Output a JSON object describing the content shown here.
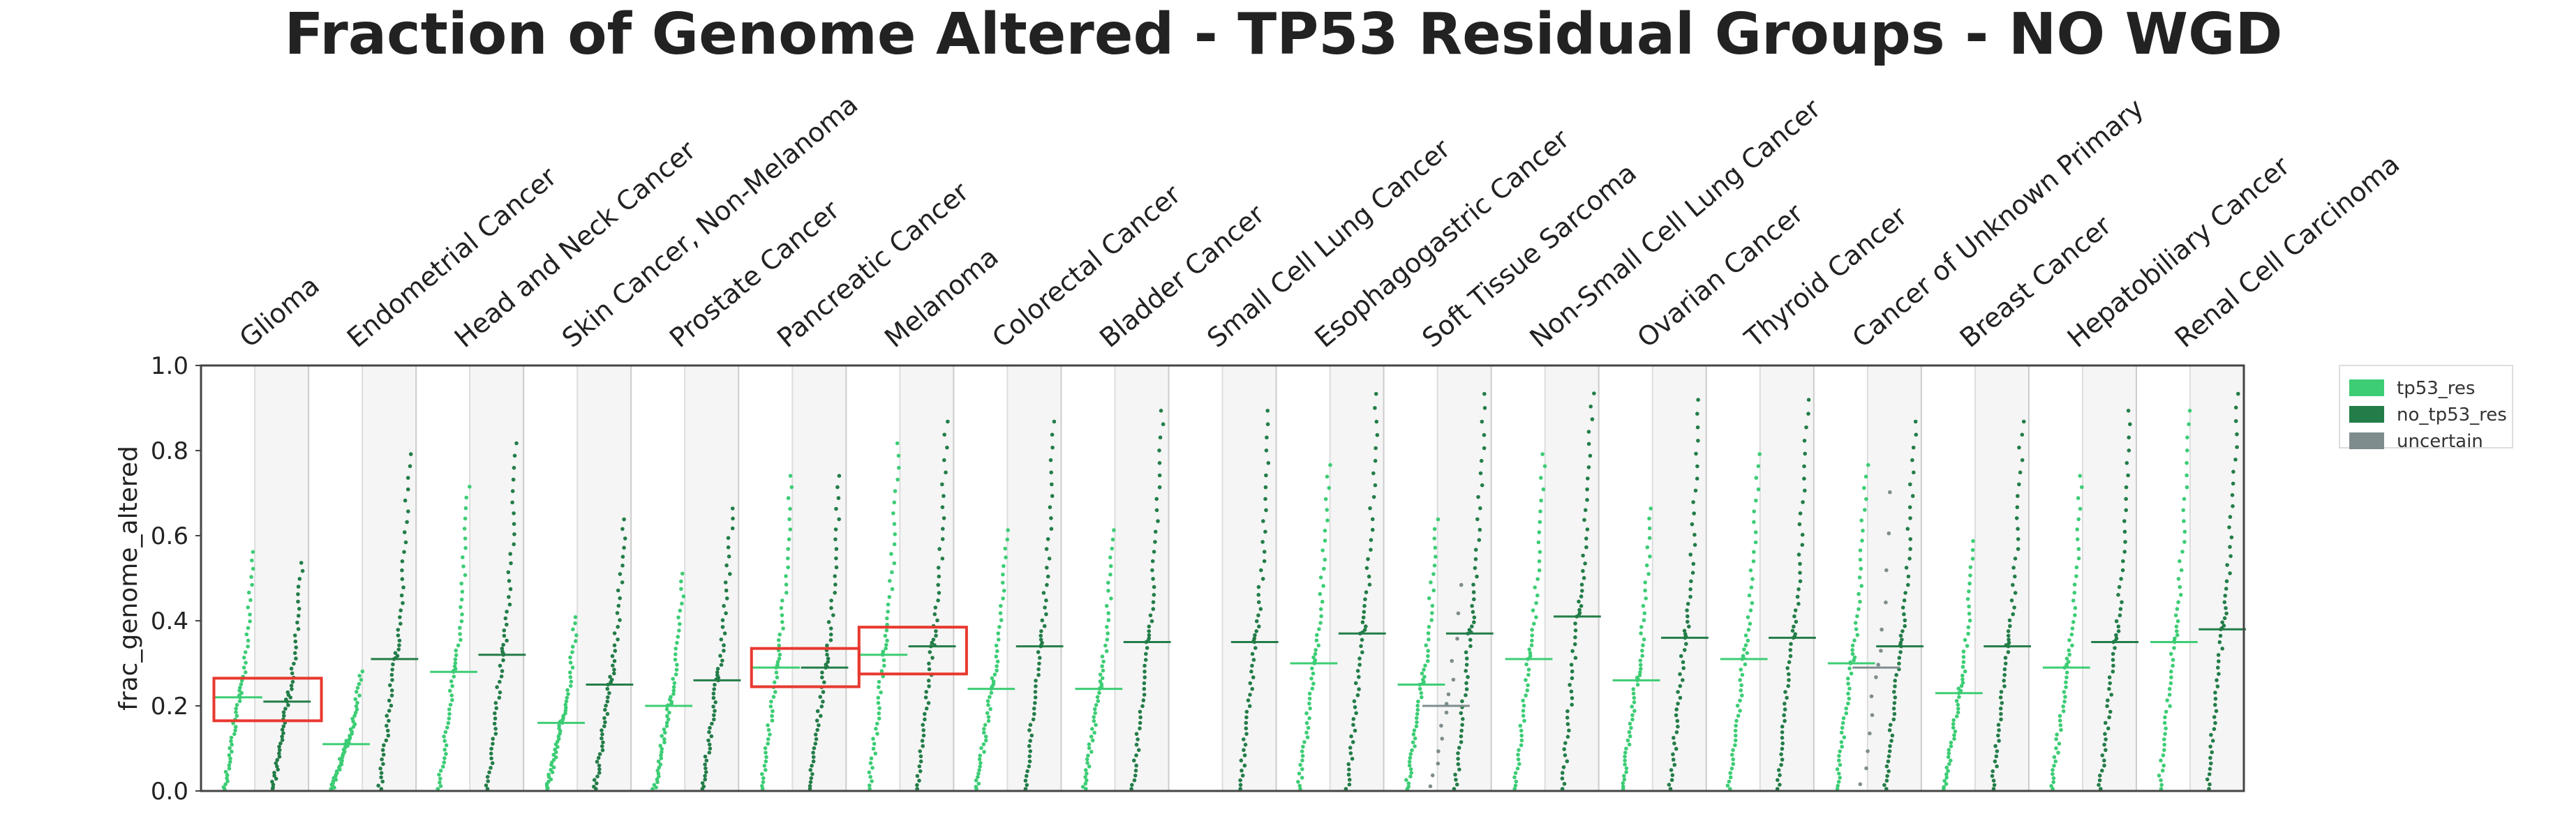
{
  "chart_data": {
    "type": "scatter",
    "title": "Fraction of Genome Altered - TP53 Residual Groups - NO WGD",
    "ylabel": "frac_genome_altered",
    "ylim": [
      0.0,
      1.0
    ],
    "yticks": [
      "0.0",
      "0.2",
      "0.4",
      "0.6",
      "0.8",
      "1.0"
    ],
    "grid": false,
    "legend_position": "outside-right",
    "categories": [
      "Glioma",
      "Endometrial Cancer",
      "Head and Neck Cancer",
      "Skin Cancer, Non-Melanoma",
      "Prostate Cancer",
      "Pancreatic Cancer",
      "Melanoma",
      "Colorectal Cancer",
      "Bladder Cancer",
      "Small Cell Lung Cancer",
      "Esophagogastric Cancer",
      "Soft Tissue Sarcoma",
      "Non-Small Cell Lung Cancer",
      "Ovarian Cancer",
      "Thyroid Cancer",
      "Cancer of Unknown Primary",
      "Breast Cancer",
      "Hepatobiliary Cancer",
      "Renal Cell Carcinoma"
    ],
    "series": [
      {
        "name": "tp53_res",
        "color": "#3dcd75",
        "medians": [
          0.22,
          0.11,
          0.28,
          0.16,
          0.2,
          0.29,
          0.32,
          0.24,
          0.24,
          null,
          0.3,
          0.25,
          0.31,
          0.26,
          0.31,
          0.3,
          0.23,
          0.29,
          0.35
        ]
      },
      {
        "name": "no_tp53_res",
        "color": "#237d48",
        "medians": [
          0.21,
          0.31,
          0.32,
          0.25,
          0.26,
          0.29,
          0.34,
          0.34,
          0.35,
          0.35,
          0.37,
          0.37,
          0.41,
          0.36,
          0.36,
          0.34,
          0.34,
          0.35,
          0.38
        ]
      },
      {
        "name": "uncertain",
        "color": "#7f8c8d",
        "medians": [
          null,
          null,
          null,
          null,
          null,
          null,
          null,
          null,
          null,
          null,
          null,
          0.2,
          null,
          null,
          null,
          0.29,
          null,
          null,
          null
        ]
      }
    ],
    "highlighted_categories": [
      "Glioma",
      "Pancreatic Cancer",
      "Melanoma"
    ],
    "highlight_color": "#e8392f",
    "band_colors": [
      "#ffffff",
      "#f5f5f5"
    ]
  }
}
